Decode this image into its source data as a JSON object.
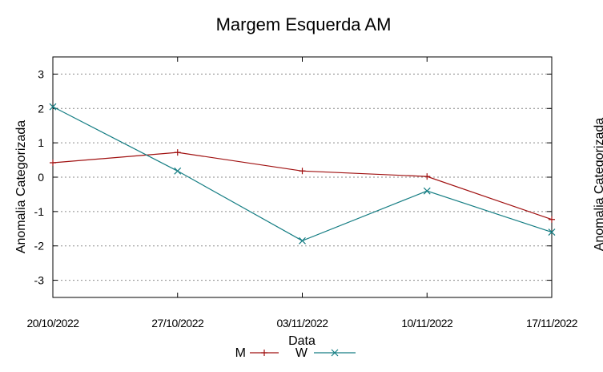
{
  "chart_data": {
    "type": "line",
    "title": "Margem Esquerda AM",
    "xlabel": "Data",
    "ylabel": "Anomalia Categorizada",
    "right_axis_label_partial": "Anomalia Categorizada",
    "categories": [
      "20/10/2022",
      "27/10/2022",
      "03/11/2022",
      "10/11/2022",
      "17/11/2022"
    ],
    "x_tick_labels": [
      "20/10/2022",
      "27/10/2022",
      "03/11/2022",
      "10/11/2022",
      "17/11/2022"
    ],
    "ylim": [
      -3.5,
      3.5
    ],
    "y_ticks": [
      3,
      2,
      1,
      0,
      -1,
      -2,
      -3
    ],
    "y_tick_labels": [
      "3",
      "2",
      "1",
      "0",
      "-1",
      "-2",
      "-3"
    ],
    "grid": true,
    "legend_position": "bottom-center",
    "series": [
      {
        "name": "M",
        "color": "#a01010",
        "marker": "plus",
        "values": [
          0.42,
          0.72,
          0.18,
          0.02,
          -1.23
        ]
      },
      {
        "name": "W",
        "color": "#167e84",
        "marker": "x",
        "values": [
          2.05,
          0.18,
          -1.85,
          -0.4,
          -1.6
        ]
      }
    ]
  }
}
